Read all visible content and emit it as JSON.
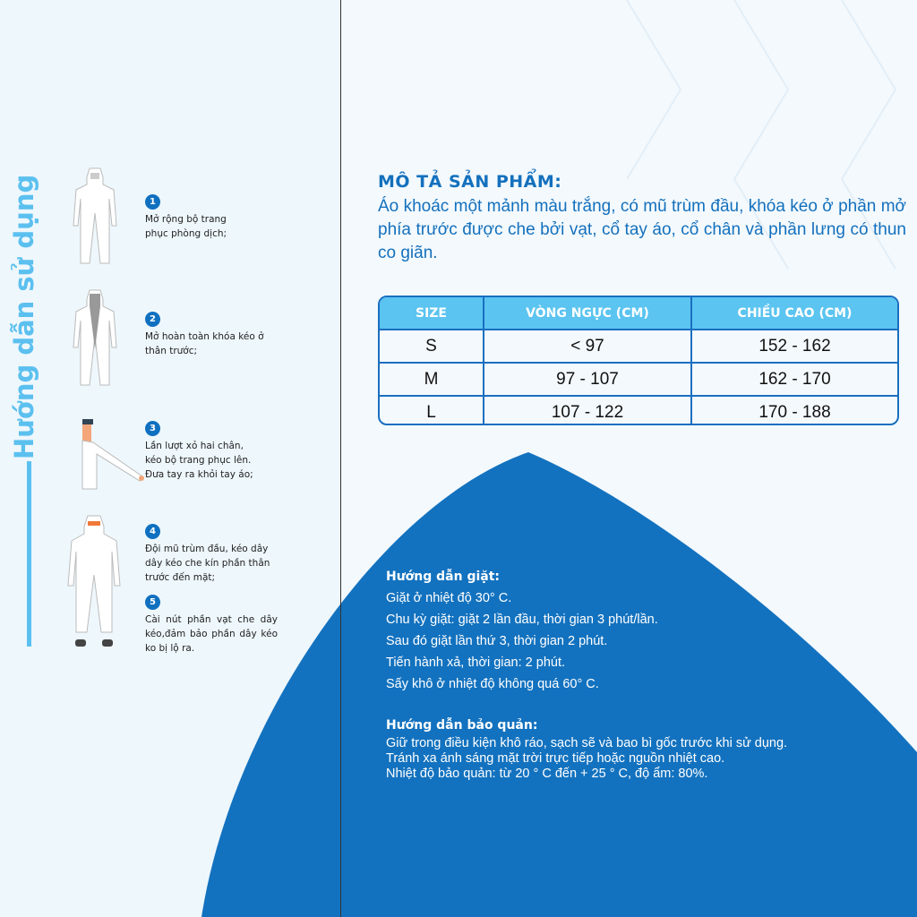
{
  "colors": {
    "accent_light": "#5bc0ef",
    "accent_dark": "#1470bd",
    "panel_blue": "#1372bf"
  },
  "guide": {
    "title": "Hướng dẫn sử dụng",
    "steps": [
      {
        "num": "1",
        "text": "Mở rộng bộ trang phục phòng dịch;"
      },
      {
        "num": "2",
        "text": "Mở hoàn toàn khóa kéo ở thân trước;"
      },
      {
        "num": "3",
        "text": "Lần lượt xỏ hai chân, kéo bộ trang phục lên. Đưa tay ra khỏi tay áo;"
      },
      {
        "num": "4",
        "text": "Đội mũ trùm đầu, kéo dây dây kéo che kín phần thân trước đến mặt;"
      },
      {
        "num": "5",
        "text": "Cài nút phần vạt che dây kéo,đảm bảo phần dây kéo ko bị lộ ra."
      }
    ]
  },
  "description": {
    "title": "MÔ TẢ SẢN PHẨM:",
    "body": "Áo khoác một mảnh màu trắng, có mũ trùm đầu, khóa kéo ở phần mở phía trước được che bởi vạt, cổ tay áo, cổ chân và phần lưng có thun co giãn."
  },
  "size_table": {
    "headers": [
      "SIZE",
      "VÒNG NGỰC (CM)",
      "CHIỀU CAO (CM)"
    ],
    "rows": [
      [
        "S",
        "< 97",
        "152 - 162"
      ],
      [
        "M",
        "97 - 107",
        "162 - 170"
      ],
      [
        "L",
        "107 - 122",
        "170 - 188"
      ]
    ]
  },
  "washing": {
    "title": "Hướng dẫn giặt:",
    "lines": [
      "Giặt ở nhiệt độ 30° C.",
      "Chu kỳ giặt: giặt 2 lần đầu, thời gian 3 phút/lần.",
      "Sau đó giặt lần thứ 3, thời gian 2 phút.",
      "Tiến hành xả, thời gian: 2 phút.",
      "Sấy khô ở nhiệt độ không quá 60° C."
    ]
  },
  "storage": {
    "title": "Hướng dẫn bảo quản:",
    "lines": [
      "Giữ trong điều kiện khô ráo, sạch sẽ và bao bì gốc trước khi sử dụng.",
      "Tránh xa ánh sáng mặt trời trực tiếp hoặc nguồn nhiệt cao.",
      "Nhiệt độ bảo quản: từ 20 ° C đến + 25 ° C, độ ẩm: 80%."
    ]
  }
}
